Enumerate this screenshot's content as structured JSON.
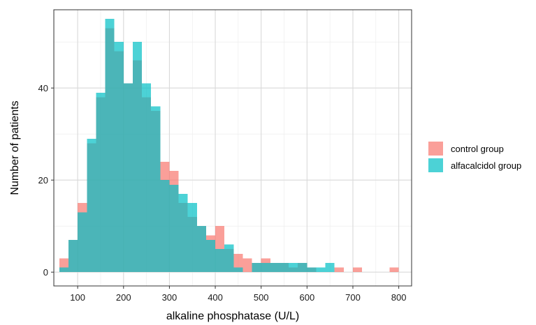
{
  "chart_data": {
    "type": "bar",
    "subtype": "overlapping-histogram",
    "title": "",
    "xlabel": "alkaline phosphatase (U/L)",
    "ylabel": "Number of patients",
    "xlim": [
      48,
      828
    ],
    "ylim": [
      -3,
      57
    ],
    "x_ticks": [
      100,
      200,
      300,
      400,
      500,
      600,
      700,
      800
    ],
    "y_ticks": [
      0,
      20,
      40
    ],
    "grid": true,
    "legend_position": "right",
    "bin_width": 20,
    "bin_starts": [
      60,
      80,
      100,
      120,
      140,
      160,
      180,
      200,
      220,
      240,
      260,
      280,
      300,
      320,
      340,
      360,
      380,
      400,
      420,
      440,
      460,
      480,
      500,
      520,
      540,
      560,
      580,
      600,
      620,
      640,
      660,
      680,
      700,
      720,
      740,
      760,
      780,
      800
    ],
    "series": [
      {
        "name": "control group",
        "color": "#F8766D",
        "values": [
          3,
          7,
          15,
          28,
          38,
          53,
          48,
          41,
          46,
          38,
          35,
          24,
          22,
          15,
          12,
          10,
          8,
          10,
          5,
          4,
          3,
          2,
          3,
          2,
          2,
          1,
          2,
          1,
          0,
          0,
          1,
          0,
          1,
          0,
          0,
          0,
          1,
          0
        ]
      },
      {
        "name": "alfacalcidol group",
        "color": "#00BFC4",
        "values": [
          1,
          7,
          13,
          29,
          39,
          55,
          50,
          41,
          50,
          41,
          36,
          20,
          19,
          17,
          15,
          10,
          7,
          5,
          6,
          1,
          0,
          2,
          2,
          2,
          2,
          2,
          2,
          1,
          1,
          2,
          0,
          0,
          0,
          0,
          0,
          0,
          0,
          0
        ]
      }
    ]
  }
}
